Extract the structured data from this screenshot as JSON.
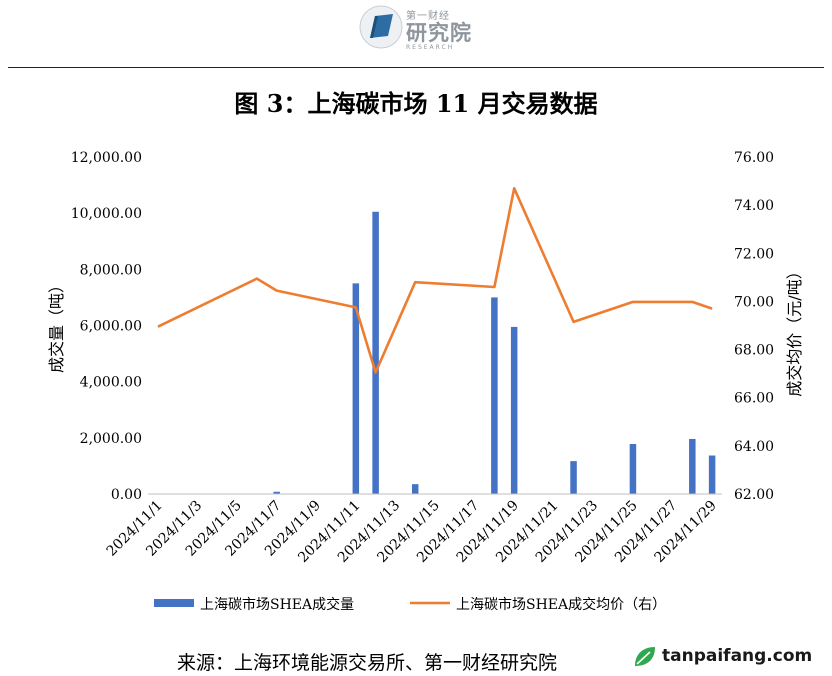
{
  "header": {
    "logo_top": "第一财经",
    "logo_main": "研究院",
    "logo_sub": "RESEARCH"
  },
  "title": "图 3：上海碳市场 11 月交易数据",
  "source": "来源：上海环境能源交易所、第一财经研究院",
  "watermark": "tanpaifang.com",
  "colors": {
    "bar": "#4472C4",
    "line": "#ED7D31",
    "logo": "#2e6da4"
  },
  "chart_data": {
    "type": "bar",
    "categories": [
      "2024/11/1",
      "2024/11/2",
      "2024/11/3",
      "2024/11/4",
      "2024/11/5",
      "2024/11/6",
      "2024/11/7",
      "2024/11/8",
      "2024/11/9",
      "2024/11/10",
      "2024/11/11",
      "2024/11/12",
      "2024/11/13",
      "2024/11/14",
      "2024/11/15",
      "2024/11/16",
      "2024/11/17",
      "2024/11/18",
      "2024/11/19",
      "2024/11/20",
      "2024/11/21",
      "2024/11/22",
      "2024/11/23",
      "2024/11/24",
      "2024/11/25",
      "2024/11/26",
      "2024/11/27",
      "2024/11/28",
      "2024/11/29"
    ],
    "tick_labels": [
      "2024/11/1",
      "2024/11/3",
      "2024/11/5",
      "2024/11/7",
      "2024/11/9",
      "2024/11/11",
      "2024/11/13",
      "2024/11/15",
      "2024/11/17",
      "2024/11/19",
      "2024/11/21",
      "2024/11/23",
      "2024/11/25",
      "2024/11/27",
      "2024/11/29"
    ],
    "series": [
      {
        "name": "上海碳市场SHEA成交量",
        "type": "bar",
        "axis": "left",
        "points": [
          {
            "x": "2024/11/7",
            "y": 80
          },
          {
            "x": "2024/11/11",
            "y": 7500
          },
          {
            "x": "2024/11/12",
            "y": 10050
          },
          {
            "x": "2024/11/14",
            "y": 350
          },
          {
            "x": "2024/11/18",
            "y": 7000
          },
          {
            "x": "2024/11/19",
            "y": 5950
          },
          {
            "x": "2024/11/22",
            "y": 1170
          },
          {
            "x": "2024/11/25",
            "y": 1780
          },
          {
            "x": "2024/11/28",
            "y": 1960
          },
          {
            "x": "2024/11/29",
            "y": 1370
          }
        ]
      },
      {
        "name": "上海碳市场SHEA成交均价（右）",
        "type": "line",
        "axis": "right",
        "points": [
          {
            "x": "2024/11/1",
            "y": 68.95
          },
          {
            "x": "2024/11/6",
            "y": 70.95
          },
          {
            "x": "2024/11/7",
            "y": 70.45
          },
          {
            "x": "2024/11/11",
            "y": 69.75
          },
          {
            "x": "2024/11/12",
            "y": 67.05
          },
          {
            "x": "2024/11/14",
            "y": 70.8
          },
          {
            "x": "2024/11/18",
            "y": 70.6
          },
          {
            "x": "2024/11/19",
            "y": 74.7
          },
          {
            "x": "2024/11/22",
            "y": 69.15
          },
          {
            "x": "2024/11/25",
            "y": 69.98
          },
          {
            "x": "2024/11/28",
            "y": 69.98
          },
          {
            "x": "2024/11/29",
            "y": 69.7
          }
        ]
      }
    ],
    "left_axis": {
      "label": "成交量（吨）",
      "ylim": [
        0,
        12000
      ],
      "ticks": [
        "0.00",
        "2,000.00",
        "4,000.00",
        "6,000.00",
        "8,000.00",
        "10,000.00",
        "12,000.00"
      ]
    },
    "right_axis": {
      "label": "成交均价（元/吨）",
      "ylim": [
        62,
        76
      ],
      "ticks": [
        "62.00",
        "64.00",
        "66.00",
        "68.00",
        "70.00",
        "72.00",
        "74.00",
        "76.00"
      ]
    },
    "grid": false,
    "legend_position": "bottom"
  }
}
